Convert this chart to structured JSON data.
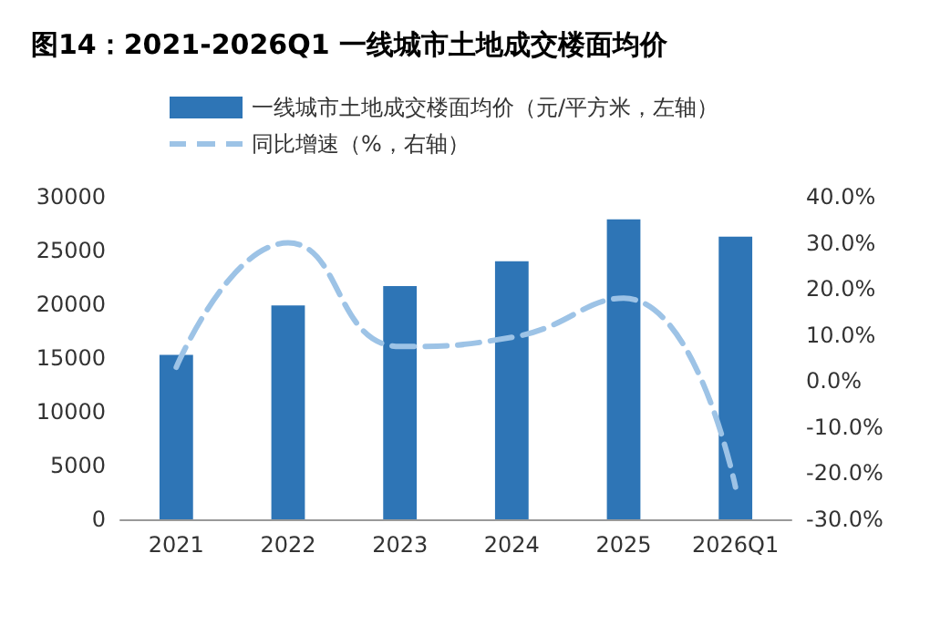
{
  "chart_data": {
    "type": "bar",
    "title": "图14：2021-2026Q1 一线城市土地成交楼面均价",
    "categories": [
      "2021",
      "2022",
      "2023",
      "2024",
      "2025",
      "2026Q1"
    ],
    "series": [
      {
        "name": "一线城市土地成交楼面均价（元/平方米，左轴）",
        "color": "#2e75b6",
        "values": [
          15300,
          19900,
          21700,
          24000,
          27900,
          26300
        ]
      },
      {
        "name": "同比增速（%，右轴）",
        "type": "line",
        "axis": "y2",
        "color": "#9dc3e6",
        "line_style": "dashed",
        "values": [
          3,
          30,
          7.5,
          9.5,
          18,
          -23
        ]
      }
    ],
    "ylim": [
      0,
      30000
    ],
    "yticks": [
      0,
      5000,
      10000,
      15000,
      20000,
      25000,
      30000
    ],
    "y2lim": [
      -30,
      40
    ],
    "y2ticks": [
      {
        "value": -30,
        "label": "-30.0%"
      },
      {
        "value": -20,
        "label": "-20.0%"
      },
      {
        "value": -10,
        "label": "-10.0%"
      },
      {
        "value": 0,
        "label": "0.0%"
      },
      {
        "value": 10,
        "label": "10.0%"
      },
      {
        "value": 20,
        "label": "20.0%"
      },
      {
        "value": 30,
        "label": "30.0%"
      },
      {
        "value": 40,
        "label": "40.0%"
      }
    ],
    "grid": false,
    "legend": "top",
    "marker": "none"
  }
}
